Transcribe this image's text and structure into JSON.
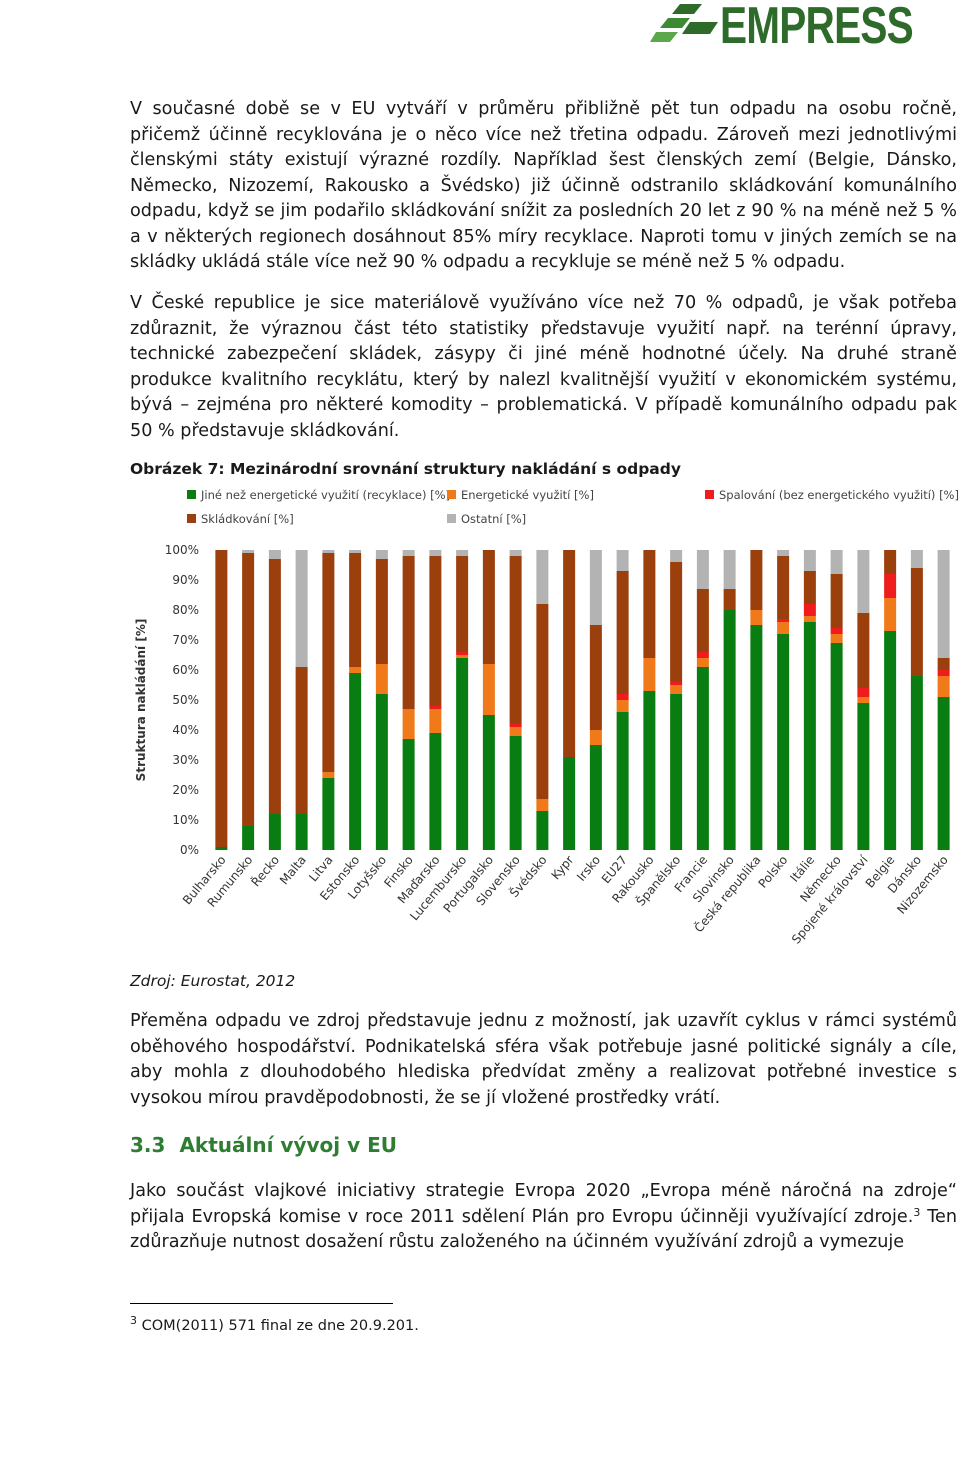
{
  "brand": {
    "name": "EMPRESS",
    "color": "#2e6b2b"
  },
  "paragraph1": "V současné době se v EU vytváří v průměru přibližně pět tun odpadu na osobu ročně, přičemž účinně recyklována je o něco více než třetina odpadu. Zároveň mezi jednotlivými členskými státy existují výrazné rozdíly. Například šest členských zemí (Belgie, Dánsko, Německo, Nizozemí, Rakousko a Švédsko) již účinně odstranilo skládkování komunálního odpadu, když se jim podařilo skládkování snížit za posledních 20 let z 90 % na méně než 5 % a v některých regionech dosáhnout 85% míry recyklace. Naproti tomu v jiných zemích se na skládky ukládá stále více než 90 % odpadu a recykluje se méně než 5 % odpadu.",
  "paragraph2": "V České republice je sice materiálově využíváno více než 70 % odpadů, je však potřeba zdůraznit, že výraznou část této statistiky představuje využití např. na terénní úpravy, technické zabezpečení skládek, zásypy či jiné méně hodnotné účely. Na druhé straně produkce kvalitního recyklátu, který by nalezl kvalitnější využití v ekonomickém systému, bývá – zejména pro některé komodity – problematická. V případě komunálního odpadu pak 50 % představuje skládkování.",
  "figure_caption": "Obrázek 7: Mezinárodní srovnání struktury nakládání s odpady",
  "source": "Zdroj: Eurostat, 2012",
  "paragraph3": "Přeměna odpadu ve zdroj představuje jednu z možností, jak uzavřít cyklus v rámci systémů oběhového hospodářství. Podnikatelská sféra však potřebuje jasné politické signály a cíle, aby mohla z dlouhodobého hlediska předvídat změny a realizovat potřebné investice s vysokou mírou pravděpodobnosti, že se jí vložené prostředky vrátí.",
  "heading": {
    "number": "3.3",
    "title": "Aktuální vývoj v EU"
  },
  "paragraph4_before_sup": "Jako součást vlajkové iniciativy strategie Evropa 2020 „Evropa méně náročná na zdroje“ přijala Evropská komise v roce 2011 sdělení Plán pro Evropu účinněji využívající zdroje.",
  "paragraph4_sup": "3",
  "paragraph4_after_sup": " Ten zdůrazňuje nutnost dosažení růstu založeného na účinném využívání zdrojů a vymezuje",
  "footnote": {
    "mark": "3",
    "text": " COM(2011) 571 final ze dne 20.9.201."
  },
  "chart_data": {
    "type": "bar",
    "stacked": true,
    "ylabel": "Struktura nakládání [%]",
    "ylim": [
      0,
      100
    ],
    "yticks": [
      "0%",
      "10%",
      "20%",
      "30%",
      "40%",
      "50%",
      "60%",
      "70%",
      "80%",
      "90%",
      "100%"
    ],
    "legend_position": "top",
    "categories": [
      "Bulharsko",
      "Rumunsko",
      "Řecko",
      "Malta",
      "Litva",
      "Estonsko",
      "Lotyšsko",
      "Finsko",
      "Maďarsko",
      "Lucembursko",
      "Portugalsko",
      "Slovensko",
      "Švédsko",
      "Kypr",
      "Irsko",
      "EU27",
      "Rakousko",
      "Španělsko",
      "Francie",
      "Slovinsko",
      "Česká republika",
      "Polsko",
      "Itálie",
      "Německo",
      "Spojené království",
      "Belgie",
      "Dánsko",
      "Nizozemsko"
    ],
    "series": [
      {
        "name": "Jiné než energetické využití (recyklace) [%]",
        "color": "#0a7d12",
        "values": [
          1,
          8,
          12,
          12,
          24,
          59,
          52,
          37,
          39,
          64,
          45,
          38,
          13,
          31,
          35,
          46,
          53,
          52,
          61,
          80,
          75,
          72,
          76,
          69,
          49,
          73,
          58,
          51
        ]
      },
      {
        "name": "Energetické využití [%]",
        "color": "#f07a1a",
        "values": [
          0,
          0,
          0,
          0,
          2,
          2,
          10,
          10,
          8,
          1,
          17,
          3,
          4,
          0,
          5,
          4,
          11,
          3,
          3,
          0,
          5,
          4,
          2,
          3,
          2,
          11,
          0,
          7
        ]
      },
      {
        "name": "Spalování (bez energetického využití) [%]",
        "color": "#ee1c1c",
        "values": [
          0,
          0,
          0,
          0,
          0,
          0,
          0,
          0,
          1,
          1,
          0,
          1,
          0,
          0,
          0,
          2,
          0,
          1,
          2,
          0,
          0,
          1,
          4,
          2,
          3,
          8,
          0,
          2
        ]
      },
      {
        "name": "Skládkování [%]",
        "color": "#9b3f0d",
        "values": [
          99,
          91,
          85,
          49,
          73,
          38,
          35,
          51,
          50,
          32,
          38,
          56,
          65,
          69,
          35,
          41,
          36,
          40,
          21,
          7,
          20,
          21,
          11,
          18,
          25,
          8,
          36,
          4
        ]
      },
      {
        "name": "Ostatní [%]",
        "color": "#b3b3b3",
        "values": [
          0,
          1,
          3,
          39,
          1,
          1,
          3,
          2,
          2,
          2,
          0,
          2,
          18,
          0,
          25,
          7,
          0,
          4,
          13,
          13,
          0,
          2,
          7,
          8,
          21,
          0,
          6,
          36
        ]
      }
    ]
  }
}
